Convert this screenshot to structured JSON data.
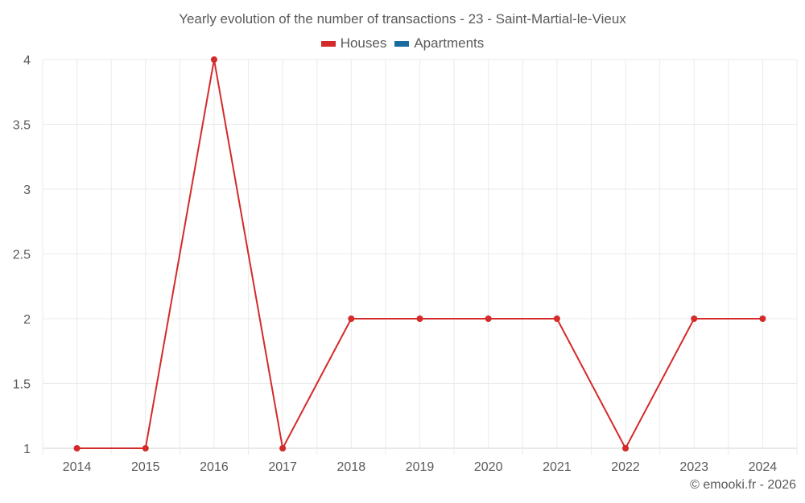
{
  "chart_data": {
    "type": "line",
    "title": "Yearly evolution of the number of transactions - 23 - Saint-Martial-le-Vieux",
    "xlabel": "",
    "ylabel": "",
    "categories": [
      "2014",
      "2015",
      "2016",
      "2017",
      "2018",
      "2019",
      "2020",
      "2021",
      "2022",
      "2023",
      "2024"
    ],
    "series": [
      {
        "name": "Houses",
        "color": "#d42a2a",
        "values": [
          1,
          1,
          4,
          1,
          2,
          2,
          2,
          2,
          1,
          2,
          2
        ]
      },
      {
        "name": "Apartments",
        "color": "#1a6ba0",
        "values": []
      }
    ],
    "ylim": [
      1,
      4
    ],
    "yticks": [
      "1",
      "1.5",
      "2",
      "2.5",
      "3",
      "3.5",
      "4"
    ],
    "grid": true,
    "legend_position": "top"
  },
  "legend": {
    "items": [
      {
        "label": "Houses",
        "color": "#d42a2a"
      },
      {
        "label": "Apartments",
        "color": "#1a6ba0"
      }
    ]
  },
  "credit": "© emooki.fr - 2026"
}
